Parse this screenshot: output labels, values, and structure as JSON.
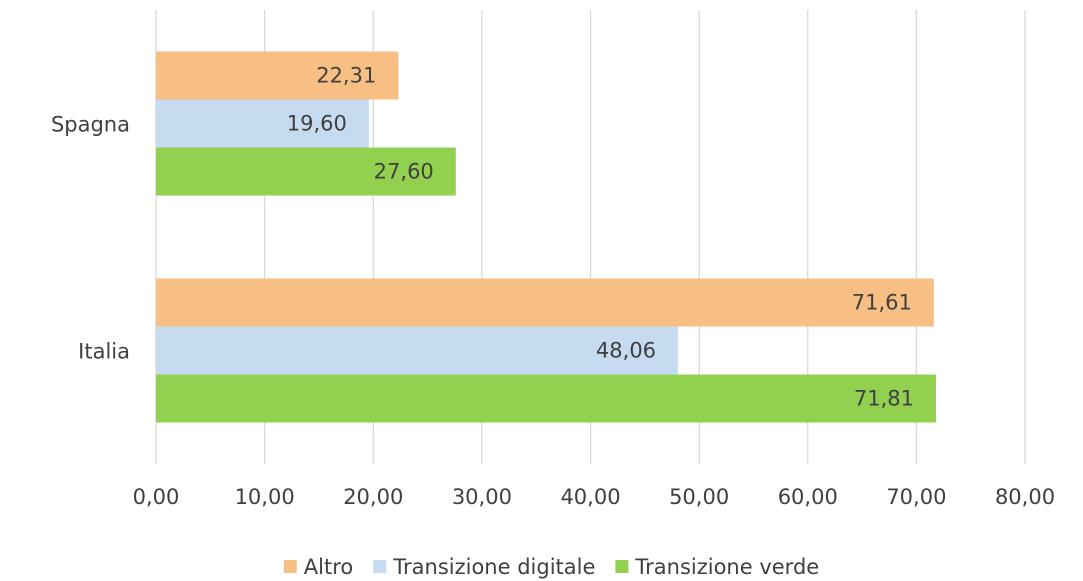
{
  "chart_data": {
    "type": "hbar",
    "categories": [
      "Spagna",
      "Italia"
    ],
    "series": [
      {
        "name": "Altro",
        "color": "#f8bf85",
        "values": [
          22.31,
          71.61
        ],
        "value_labels": [
          "22,31",
          "71,61"
        ]
      },
      {
        "name": "Transizione digitale",
        "color": "#c6dbf0",
        "values": [
          19.6,
          48.06
        ],
        "value_labels": [
          "19,60",
          "48,06"
        ]
      },
      {
        "name": "Transizione verde",
        "color": "#92d050",
        "values": [
          27.6,
          71.81
        ],
        "value_labels": [
          "27,60",
          "71,81"
        ]
      }
    ],
    "xlim": [
      0,
      80
    ],
    "xticks": [
      {
        "value": 0,
        "label": "0,00"
      },
      {
        "value": 10,
        "label": "10,00"
      },
      {
        "value": 20,
        "label": "20,00"
      },
      {
        "value": 30,
        "label": "30,00"
      },
      {
        "value": 40,
        "label": "40,00"
      },
      {
        "value": 50,
        "label": "50,00"
      },
      {
        "value": 60,
        "label": "60,00"
      },
      {
        "value": 70,
        "label": "70,00"
      },
      {
        "value": 80,
        "label": "80,00"
      }
    ],
    "grid": true,
    "legend": "bottom"
  }
}
